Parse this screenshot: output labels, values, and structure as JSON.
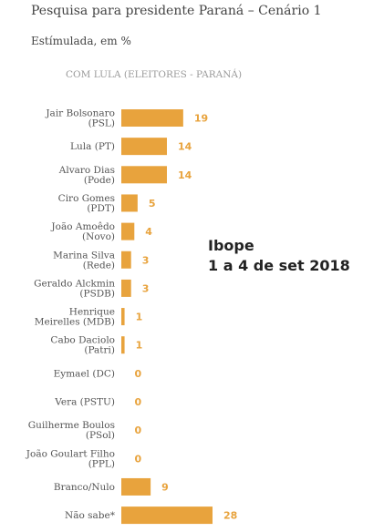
{
  "header": {
    "title": "Pesquisa para presidente Paraná – Cenário 1",
    "subtitle": "Estímulada, em %"
  },
  "annotation": {
    "line1": "Ibope",
    "line2": "1 a 4 de set 2018"
  },
  "colors": {
    "bar": "#e8a33d",
    "value_label": "#e8a33d"
  },
  "chart_data": {
    "type": "bar",
    "orientation": "horizontal",
    "title": "COM LULA (ELEITORES - PARANÁ)",
    "categories": [
      [
        "Jair Bolsonaro",
        "(PSL)"
      ],
      [
        "Lula (PT)"
      ],
      [
        "Alvaro Dias",
        "(Pode)"
      ],
      [
        "Ciro Gomes",
        "(PDT)"
      ],
      [
        "João Amoêdo",
        "(Novo)"
      ],
      [
        "Marina Silva",
        "(Rede)"
      ],
      [
        "Geraldo Alckmin",
        "(PSDB)"
      ],
      [
        "Henrique",
        "Meirelles (MDB)"
      ],
      [
        "Cabo Daciolo",
        "(Patri)"
      ],
      [
        "Eymael (DC)"
      ],
      [
        "Vera (PSTU)"
      ],
      [
        "Guilherme Boulos",
        "(PSol)"
      ],
      [
        "João Goulart Filho",
        "(PPL)"
      ],
      [
        "Branco/Nulo"
      ],
      [
        "Não sabe*"
      ]
    ],
    "values": [
      19,
      14,
      14,
      5,
      4,
      3,
      3,
      1,
      1,
      0,
      0,
      0,
      0,
      9,
      28
    ],
    "xlim": [
      0,
      28
    ],
    "grid": false,
    "legend": "none"
  }
}
